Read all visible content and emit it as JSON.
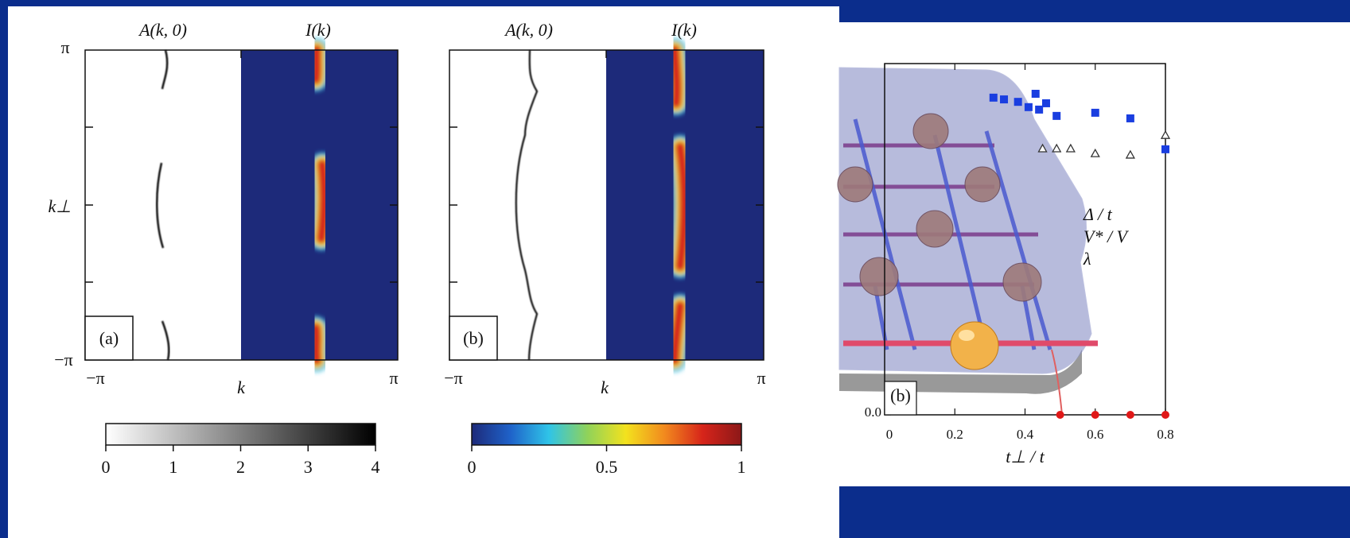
{
  "figure": {
    "panels": [
      {
        "label": "(a)",
        "left_title": "A(k, 0)",
        "right_title": "I(k)",
        "x_left": "−π",
        "x_label": "k",
        "x_right": "π"
      },
      {
        "label": "(b)",
        "left_title": "A(k, 0)",
        "right_title": "I(k)",
        "x_left": "−π",
        "x_label": "k",
        "x_right": "π"
      }
    ],
    "y_top": "π",
    "y_label": "k⊥",
    "y_bottom": "−π"
  },
  "chart_data": [
    {
      "type": "colorbar",
      "colormap": [
        "#ffffff",
        "#000000"
      ],
      "xlim": [
        0,
        4
      ],
      "xticks": [
        0,
        1,
        2,
        3,
        4
      ]
    },
    {
      "type": "colorbar",
      "colormap": [
        "#1d2a7a",
        "#1f62c9",
        "#2fc4e8",
        "#8fd25a",
        "#f3e21e",
        "#f28a1e",
        "#d6241a",
        "#8c1818"
      ],
      "xlim": [
        0,
        1
      ],
      "xticks": [
        0,
        0.5,
        1
      ]
    },
    {
      "type": "scatter",
      "panel_label": "(b)",
      "x_label": "t⊥ / t",
      "xlim": [
        0,
        0.8
      ],
      "xticks": [
        0,
        0.2,
        0.4,
        0.6,
        0.8
      ],
      "ylim": [
        0,
        1
      ],
      "yticks": [
        {
          "value": 0,
          "label": "0.0"
        }
      ],
      "series": [
        {
          "name": "Δ / t",
          "color": "#1a3ee0",
          "marker": "square",
          "x": [
            0.31,
            0.34,
            0.38,
            0.41,
            0.43,
            0.44,
            0.46,
            0.49,
            0.6,
            0.7,
            0.8
          ],
          "values": [
            0.903,
            0.898,
            0.891,
            0.876,
            0.914,
            0.869,
            0.887,
            0.851,
            0.86,
            0.844,
            0.756
          ]
        },
        {
          "name": "V* / V",
          "color": "#333333",
          "marker": "triangle",
          "x": [
            0.45,
            0.49,
            0.53,
            0.6,
            0.7,
            0.8
          ],
          "values": [
            0.758,
            0.758,
            0.758,
            0.744,
            0.74,
            0.796
          ]
        },
        {
          "name": "λ",
          "color": "#e01818",
          "marker": "circle",
          "x": [
            0.5,
            0.6,
            0.7,
            0.8
          ],
          "values": [
            0,
            0,
            0,
            0
          ]
        }
      ]
    }
  ]
}
